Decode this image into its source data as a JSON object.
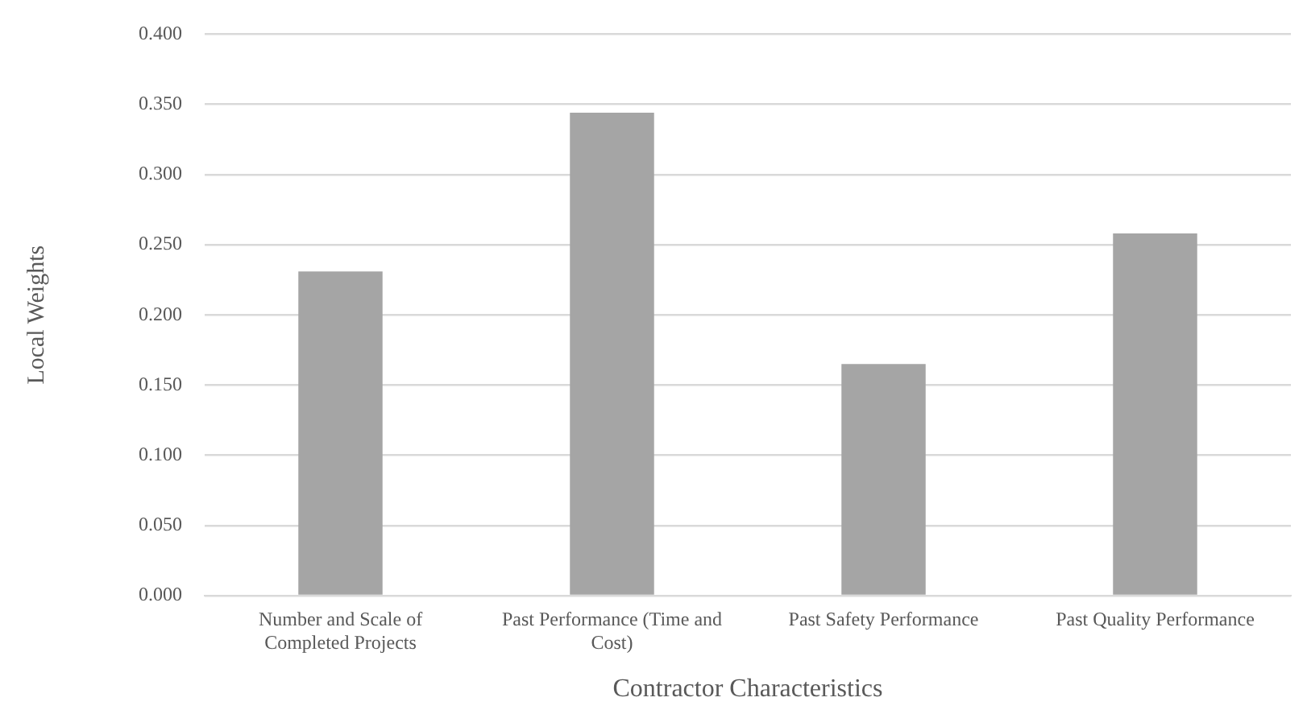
{
  "chart_data": {
    "type": "bar",
    "xlabel": "Contractor Characteristics",
    "ylabel": "Local Weights",
    "categories": [
      "Number and Scale of Completed Projects",
      "Past Performance (Time and Cost)",
      "Past Safety Performance",
      "Past Quality Performance"
    ],
    "values": [
      0.231,
      0.344,
      0.165,
      0.258
    ],
    "color": "#a5a5a5",
    "ylim": [
      0,
      0.4
    ],
    "yticks": [
      {
        "value": 0,
        "label": "0.000"
      },
      {
        "value": 0.05,
        "label": "0.050"
      },
      {
        "value": 0.1,
        "label": "0.100"
      },
      {
        "value": 0.15,
        "label": "0.150"
      },
      {
        "value": 0.2,
        "label": "0.200"
      },
      {
        "value": 0.25,
        "label": "0.250"
      },
      {
        "value": 0.3,
        "label": "0.300"
      },
      {
        "value": 0.35,
        "label": "0.350"
      },
      {
        "value": 0.4,
        "label": "0.400"
      }
    ],
    "grid": "y",
    "legend": false
  }
}
